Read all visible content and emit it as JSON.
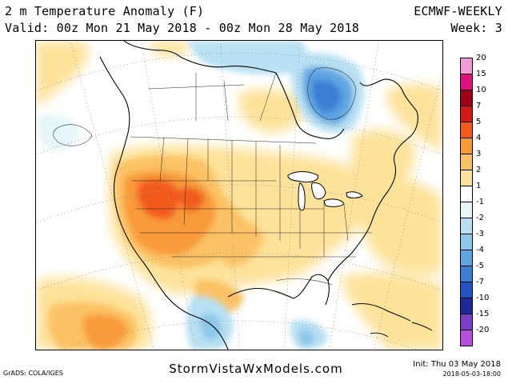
{
  "header": {
    "title": "2 m Temperature Anomaly (F)",
    "valid": "Valid: 00z Mon 21 May 2018 - 00z Mon 28 May 2018",
    "model": "ECMWF-WEEKLY",
    "week": "Week: 3"
  },
  "colorbar": {
    "levels": [
      {
        "label": "20",
        "color": "#f39bd4"
      },
      {
        "label": "15",
        "color": "#e0117f"
      },
      {
        "label": "10",
        "color": "#a00016"
      },
      {
        "label": "7",
        "color": "#d41a14"
      },
      {
        "label": "5",
        "color": "#f25a1c"
      },
      {
        "label": "4",
        "color": "#f89a3a"
      },
      {
        "label": "3",
        "color": "#fbc265"
      },
      {
        "label": "2",
        "color": "#fde29a"
      },
      {
        "label": "1",
        "color": "#ffffff"
      },
      {
        "label": "-1",
        "color": "#e6f5fa"
      },
      {
        "label": "-2",
        "color": "#b8e0f2"
      },
      {
        "label": "-3",
        "color": "#8cc6ea"
      },
      {
        "label": "-4",
        "color": "#5ea6e2"
      },
      {
        "label": "-5",
        "color": "#3b7fd6"
      },
      {
        "label": "-7",
        "color": "#2253c2"
      },
      {
        "label": "-10",
        "color": "#1e2a9a"
      },
      {
        "label": "-15",
        "color": "#7a3fc6"
      },
      {
        "label": "-20",
        "color": "#b64fe0"
      }
    ]
  },
  "footer": {
    "site": "StormVistaWxModels.com",
    "grads": "GrADS: COLA/IGES",
    "init": "Init: Thu 03 May 2018",
    "init_time": "2018-05-03-18:00"
  }
}
